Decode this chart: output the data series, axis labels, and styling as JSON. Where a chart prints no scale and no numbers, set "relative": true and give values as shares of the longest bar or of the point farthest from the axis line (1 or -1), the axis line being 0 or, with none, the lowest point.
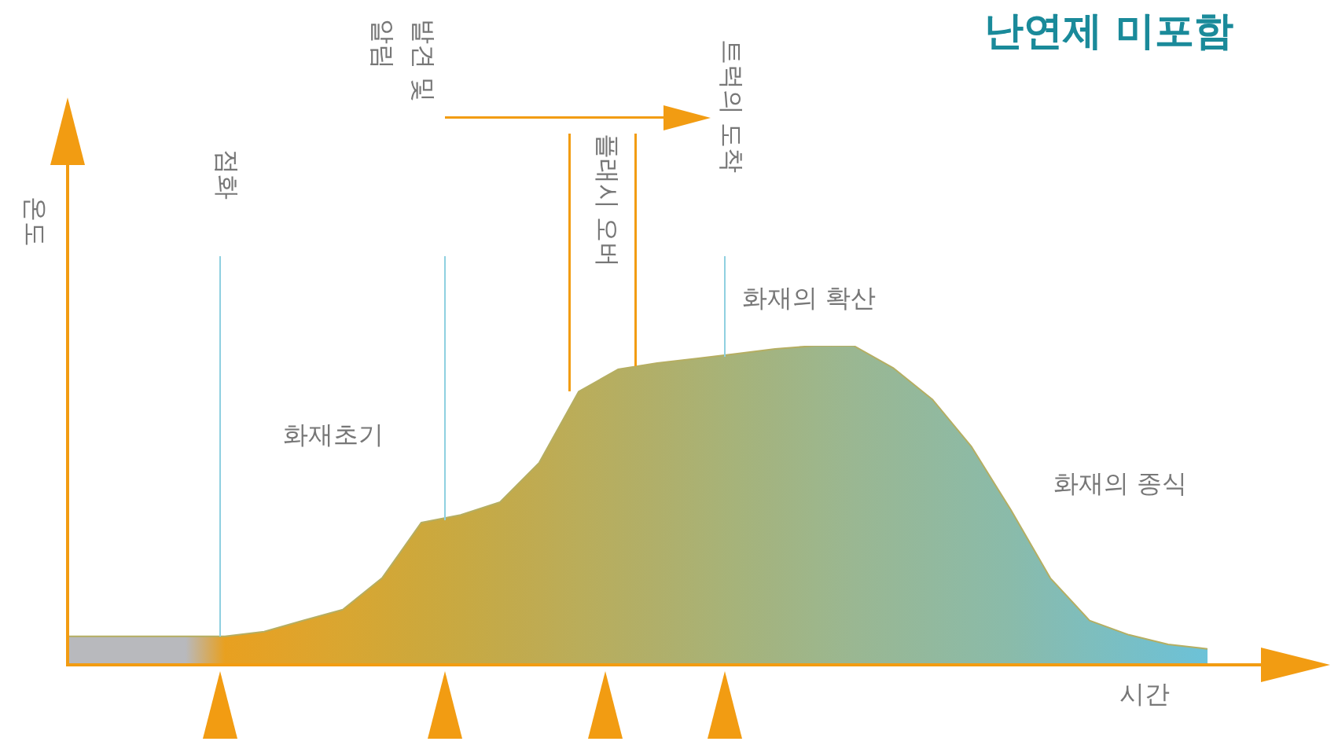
{
  "chart_data": {
    "type": "area",
    "relative": true,
    "title": "난연제 미포함",
    "xlabel": "시간",
    "ylabel": "온도",
    "categories": [
      null,
      null,
      null,
      null,
      null,
      null,
      null,
      null,
      null,
      null,
      null,
      null,
      null,
      null,
      null,
      null,
      null,
      null,
      null,
      null,
      null,
      null,
      null,
      null,
      null,
      null,
      null,
      null,
      null,
      null
    ],
    "series": [
      {
        "color": "#b5ae62",
        "colors": [
          "#b8b9bd",
          "#b8b9bd",
          "#b8b9bd",
          "#b8b9bd",
          "#e8a020",
          "#e4a226",
          "#dfa42c",
          "#d9a631",
          "#d3a736",
          "#cda83c",
          "#c8a942",
          "#c3aa4a",
          "#bfab52",
          "#baad5a",
          "#b5ae62",
          "#b0af6a",
          "#abb172",
          "#a6b37a",
          "#a2b482",
          "#9eb68a",
          "#9ab792",
          "#96b898",
          "#92b99e",
          "#8ebaa4",
          "#8abbaa",
          "#84bcb4",
          "#7ebebd",
          "#78bfc6",
          "#72c0cf",
          "#6cc2d8"
        ],
        "values": [
          0.089,
          0.089,
          0.089,
          0.089,
          0.089,
          0.104,
          0.139,
          0.173,
          0.272,
          0.446,
          0.47,
          0.51,
          0.634,
          0.856,
          0.926,
          0.946,
          0.96,
          0.975,
          0.99,
          1,
          1,
          0.931,
          0.832,
          0.683,
          0.485,
          0.272,
          0.139,
          0.094,
          0.064,
          0.05
        ]
      }
    ],
    "annotations": [
      "점화",
      "발견 및 알림",
      "플래시 오버",
      "트럭의 도착",
      "화재초기",
      "화재의 확산",
      "화재의 종식"
    ]
  }
}
